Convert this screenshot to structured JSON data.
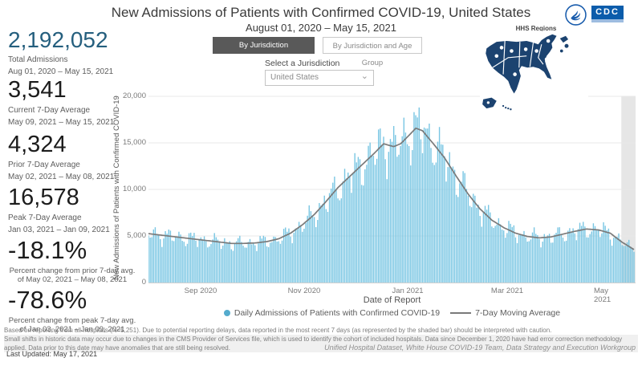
{
  "header": {
    "title": "New Admissions of Patients with Confirmed COVID-19, United States",
    "subtitle": "August 01, 2020 – May 15, 2021",
    "cdc_logo_text": "CDC",
    "hhs_regions_label": "HHS Regions"
  },
  "icons": {
    "chevron_down": "⌄"
  },
  "tabs": [
    {
      "label": "By Jurisdiction",
      "selected": true
    },
    {
      "label": "By Jurisdiction and Age Group",
      "selected": false
    }
  ],
  "jurisdiction": {
    "label": "Select a Jurisdiction",
    "value": "United States"
  },
  "stats": [
    {
      "value": "2,192,052",
      "label": "Total Admissions",
      "range": "Aug 01, 2020 – May 15, 2021"
    },
    {
      "value": "3,541",
      "label": "Current 7-Day Average",
      "range": "May 09, 2021 – May 15, 2021"
    },
    {
      "value": "4,324",
      "label": "Prior 7-Day Average",
      "range": "May 02, 2021 – May 08, 2021"
    },
    {
      "value": "16,578",
      "label": "Peak 7-Day Average",
      "range": "Jan 03, 2021 – Jan 09, 2021"
    },
    {
      "value": "-18.1%",
      "label": "Percent change from prior 7-day avg. of May 02, 2021 – May 08, 2021"
    },
    {
      "value": "-78.6%",
      "label": "Percent change from peak 7-day avg. of Jan 03, 2021 – Jan 09, 2021"
    }
  ],
  "chart_data": {
    "type": "bar+line",
    "xlabel": "Date of Report",
    "ylabel": "New Admissions of Patients with Confirmed COVID-19",
    "x_start": "2020-08-01",
    "x_end": "2021-05-15",
    "ylim": [
      0,
      20000
    ],
    "yticks": [
      0,
      5000,
      10000,
      15000,
      20000
    ],
    "ytick_labels": [
      "0",
      "5,000",
      "10,000",
      "15,000",
      "20,000"
    ],
    "xtick_labels": [
      "Sep 2020",
      "Nov 2020",
      "Jan 2021",
      "Mar 2021",
      "May 2021"
    ],
    "xtick_days": [
      31,
      92,
      153,
      212,
      273
    ],
    "grid": true,
    "shaded_recent_days": 7,
    "colors": {
      "bar": "#79c6e3",
      "moving_average_line": "#7a7a7a",
      "shaded_band": "#e6e6e6"
    },
    "legend": [
      {
        "label": "Daily Admissions of Patients with Confirmed COVID-19",
        "type": "dot",
        "color": "#54abcd"
      },
      {
        "label": "7-Day Moving Average",
        "type": "line",
        "color": "#7a7a7a"
      }
    ],
    "moving_average": [
      [
        "2020-08-01",
        5250
      ],
      [
        "2020-08-08",
        5100
      ],
      [
        "2020-08-15",
        4950
      ],
      [
        "2020-08-22",
        4800
      ],
      [
        "2020-08-29",
        4650
      ],
      [
        "2020-09-05",
        4500
      ],
      [
        "2020-09-12",
        4350
      ],
      [
        "2020-09-19",
        4200
      ],
      [
        "2020-09-26",
        4200
      ],
      [
        "2020-10-03",
        4250
      ],
      [
        "2020-10-10",
        4400
      ],
      [
        "2020-10-17",
        4700
      ],
      [
        "2020-10-24",
        5300
      ],
      [
        "2020-10-31",
        6200
      ],
      [
        "2020-11-07",
        7300
      ],
      [
        "2020-11-14",
        8700
      ],
      [
        "2020-11-21",
        10200
      ],
      [
        "2020-11-28",
        11400
      ],
      [
        "2020-12-05",
        12600
      ],
      [
        "2020-12-12",
        13800
      ],
      [
        "2020-12-18",
        14900
      ],
      [
        "2020-12-24",
        14600
      ],
      [
        "2020-12-28",
        14900
      ],
      [
        "2021-01-02",
        15800
      ],
      [
        "2021-01-06",
        16578
      ],
      [
        "2021-01-10",
        16300
      ],
      [
        "2021-01-16",
        15000
      ],
      [
        "2021-01-23",
        13400
      ],
      [
        "2021-01-30",
        11400
      ],
      [
        "2021-02-06",
        9500
      ],
      [
        "2021-02-13",
        7900
      ],
      [
        "2021-02-20",
        6700
      ],
      [
        "2021-02-27",
        5900
      ],
      [
        "2021-03-06",
        5300
      ],
      [
        "2021-03-13",
        4950
      ],
      [
        "2021-03-20",
        4800
      ],
      [
        "2021-03-27",
        4900
      ],
      [
        "2021-04-03",
        5200
      ],
      [
        "2021-04-10",
        5500
      ],
      [
        "2021-04-17",
        5750
      ],
      [
        "2021-04-24",
        5650
      ],
      [
        "2021-05-01",
        5300
      ],
      [
        "2021-05-08",
        4324
      ],
      [
        "2021-05-15",
        3541
      ]
    ],
    "bars_model": {
      "weekday_factors": [
        0.84,
        0.95,
        1.07,
        1.1,
        1.08,
        1.04,
        0.92
      ],
      "note": "daily bars oscillate around the 7-day moving average with weekend dips"
    }
  },
  "footnotes": [
    "Based on reporting from all hospitals (N=5,251). Due to potential reporting delays, data reported in the most recent 7 days (as represented by the shaded bar) should be interpreted with caution.",
    "Small shifts in historic data may occur due to changes in the CMS Provider of Services file, which is used to identify the cohort of included hospitals. Data since December 1, 2020 have had error correction methodology applied. Data prior to this date may have anomalies that are still being resolved."
  ],
  "footer": {
    "last_updated": "Last Updated: May 17, 2021",
    "source": "Unified Hospital Dataset, White House COVID-19 Team, Data Strategy and Execution Workgroup"
  }
}
